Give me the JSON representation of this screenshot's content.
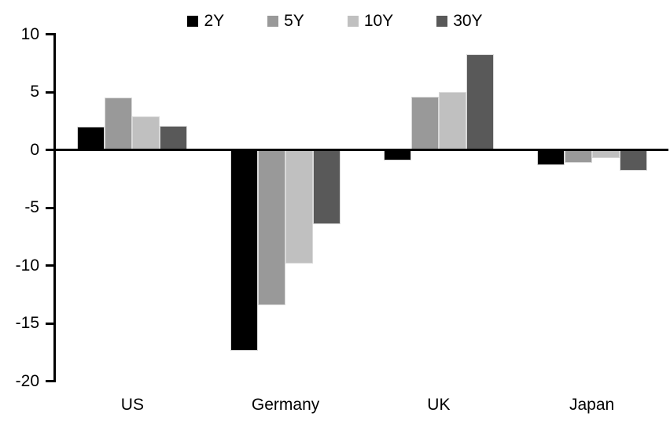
{
  "chart_data": {
    "type": "bar",
    "title": "",
    "xlabel": "",
    "ylabel": "",
    "categories": [
      "US",
      "Germany",
      "UK",
      "Japan"
    ],
    "series": [
      {
        "name": "2Y",
        "color": "#000000",
        "values": [
          2.0,
          -17.4,
          -0.9,
          -1.3
        ]
      },
      {
        "name": "5Y",
        "color": "#999999",
        "values": [
          4.5,
          -13.4,
          4.6,
          -1.1
        ]
      },
      {
        "name": "10Y",
        "color": "#c0c0c0",
        "values": [
          2.9,
          -9.8,
          5.0,
          -0.7
        ]
      },
      {
        "name": "30Y",
        "color": "#595959",
        "values": [
          2.1,
          -6.4,
          8.3,
          -1.8
        ]
      }
    ],
    "ylim": [
      -20,
      10
    ],
    "yticks": [
      10,
      5,
      0,
      -5,
      -10,
      -15,
      -20
    ],
    "grid": false,
    "legend_position": "top-center",
    "axis_color": "#000000",
    "bar_border_color": "#d9d9d9",
    "background_color": "#ffffff"
  }
}
